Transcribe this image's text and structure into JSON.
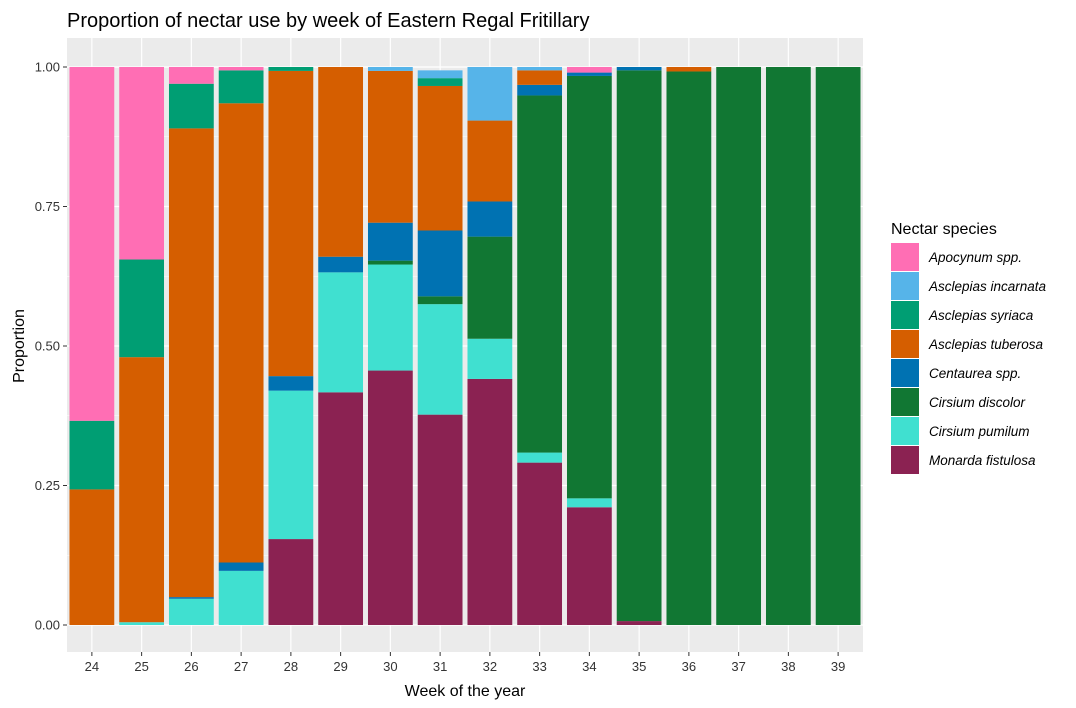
{
  "chart_data": {
    "type": "bar",
    "stacked": true,
    "title": "Proportion of nectar use by week of Eastern Regal Fritillary",
    "xlabel": "Week of the year",
    "ylabel": "Proportion",
    "ylim": [
      0,
      1
    ],
    "yticks": [
      "0.00",
      "0.25",
      "0.50",
      "0.75",
      "1.00"
    ],
    "categories": [
      "24",
      "25",
      "26",
      "27",
      "28",
      "29",
      "30",
      "31",
      "32",
      "33",
      "34",
      "35",
      "36",
      "37",
      "38",
      "39"
    ],
    "legend_title": "Nectar species",
    "legend_position": "right",
    "grid": true,
    "series": [
      {
        "name": "Apocynum spp.",
        "color": "#FF6EB4",
        "values": [
          0.634,
          0.345,
          0.03,
          0.006,
          0,
          0,
          0,
          0,
          0,
          0,
          0.01,
          0,
          0,
          0,
          0,
          0
        ]
      },
      {
        "name": "Asclepias incarnata",
        "color": "#56B4E9",
        "values": [
          0,
          0,
          0,
          0,
          0,
          0,
          0.007,
          0.014,
          0.096,
          0.006,
          0,
          0,
          0,
          0,
          0,
          0
        ]
      },
      {
        "name": "Asclepias syriaca",
        "color": "#009E73",
        "values": [
          0.123,
          0.175,
          0.08,
          0.059,
          0.007,
          0,
          0,
          0.014,
          0,
          0,
          0,
          0,
          0,
          0,
          0,
          0
        ]
      },
      {
        "name": "Asclepias tuberosa",
        "color": "#D55E00",
        "values": [
          0.243,
          0.475,
          0.84,
          0.823,
          0.547,
          0.34,
          0.272,
          0.259,
          0.145,
          0.026,
          0,
          0,
          0.008,
          0,
          0,
          0
        ]
      },
      {
        "name": "Centaurea spp.",
        "color": "#0072B2",
        "values": [
          0,
          0,
          0.003,
          0.015,
          0.026,
          0.028,
          0.068,
          0.118,
          0.063,
          0.019,
          0.006,
          0.006,
          0,
          0,
          0,
          0
        ]
      },
      {
        "name": "Cirsium discolor",
        "color": "#117733",
        "values": [
          0,
          0,
          0,
          0,
          0,
          0,
          0.007,
          0.014,
          0.183,
          0.64,
          0.757,
          0.987,
          0.992,
          1.0,
          1.0,
          1.0
        ]
      },
      {
        "name": "Cirsium pumilum",
        "color": "#40E0D0",
        "values": [
          0,
          0.005,
          0.047,
          0.097,
          0.266,
          0.215,
          0.19,
          0.198,
          0.072,
          0.018,
          0.016,
          0,
          0,
          0,
          0,
          0
        ]
      },
      {
        "name": "Monarda fistulosa",
        "color": "#8B2252",
        "values": [
          0,
          0,
          0,
          0,
          0.154,
          0.417,
          0.456,
          0.377,
          0.441,
          0.291,
          0.211,
          0.007,
          0,
          0,
          0,
          0
        ]
      }
    ]
  }
}
